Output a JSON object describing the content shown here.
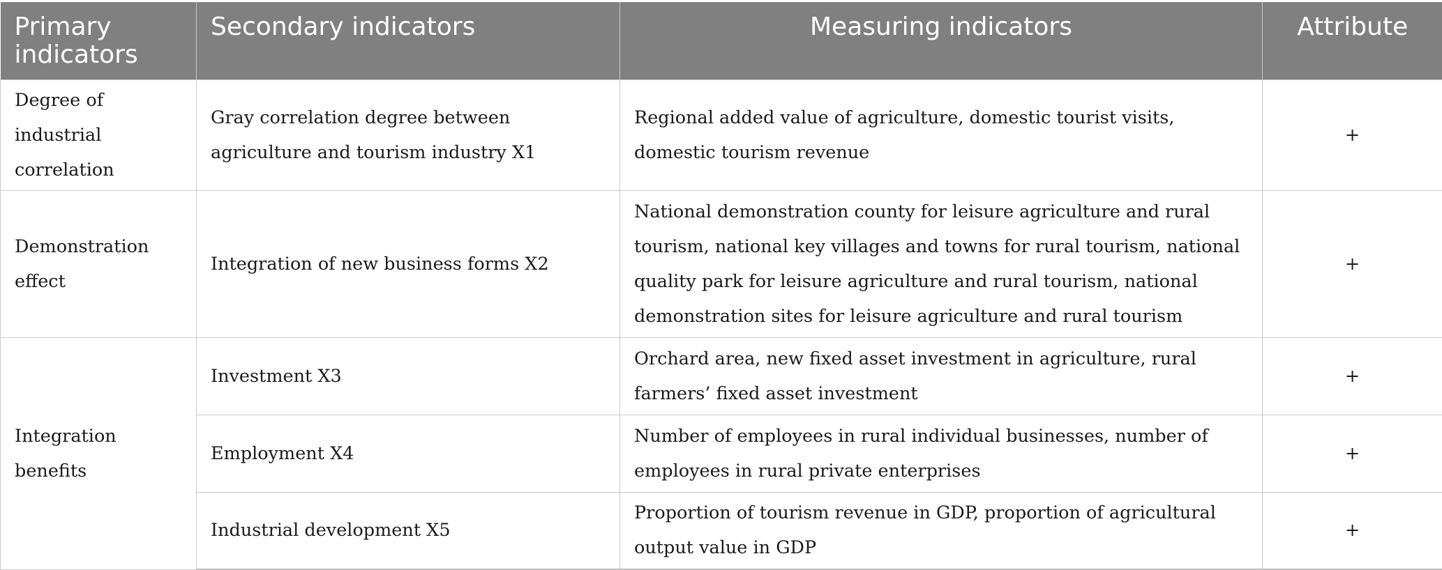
{
  "header": {
    "col1": "Primary indicators",
    "col2": "Secondary indicators",
    "col3": "Measuring indicators",
    "col4": "Attribute"
  },
  "rows": [
    {
      "primary": "Degree of industrial correlation",
      "secondary": "Gray correlation degree between agriculture and tourism industry X1",
      "measuring": "Regional added value of agriculture, domestic tourist visits, domestic tourism revenue",
      "attribute": "+"
    },
    {
      "primary": "Demonstration effect",
      "secondary": "Integration of new business forms X2",
      "measuring": "National demonstration county for leisure agriculture and rural tourism, national key villages and towns for rural tourism, national quality park for leisure agriculture and rural tourism, national demonstration sites for leisure agriculture and rural tourism",
      "attribute": "+"
    },
    {
      "primary": "Integration benefits",
      "secondary": "Investment X3",
      "measuring": "Orchard area, new fixed asset investment in agriculture, rural farmers’ fixed asset investment",
      "attribute": "+"
    },
    {
      "secondary": "Employment X4",
      "measuring": "Number of employees in rural individual businesses, number of employees in rural private enterprises",
      "attribute": "+"
    },
    {
      "secondary": "Industrial development X5",
      "measuring": "Proportion of tourism revenue in GDP, proportion of agricultural output value in GDP",
      "attribute": "+"
    }
  ]
}
